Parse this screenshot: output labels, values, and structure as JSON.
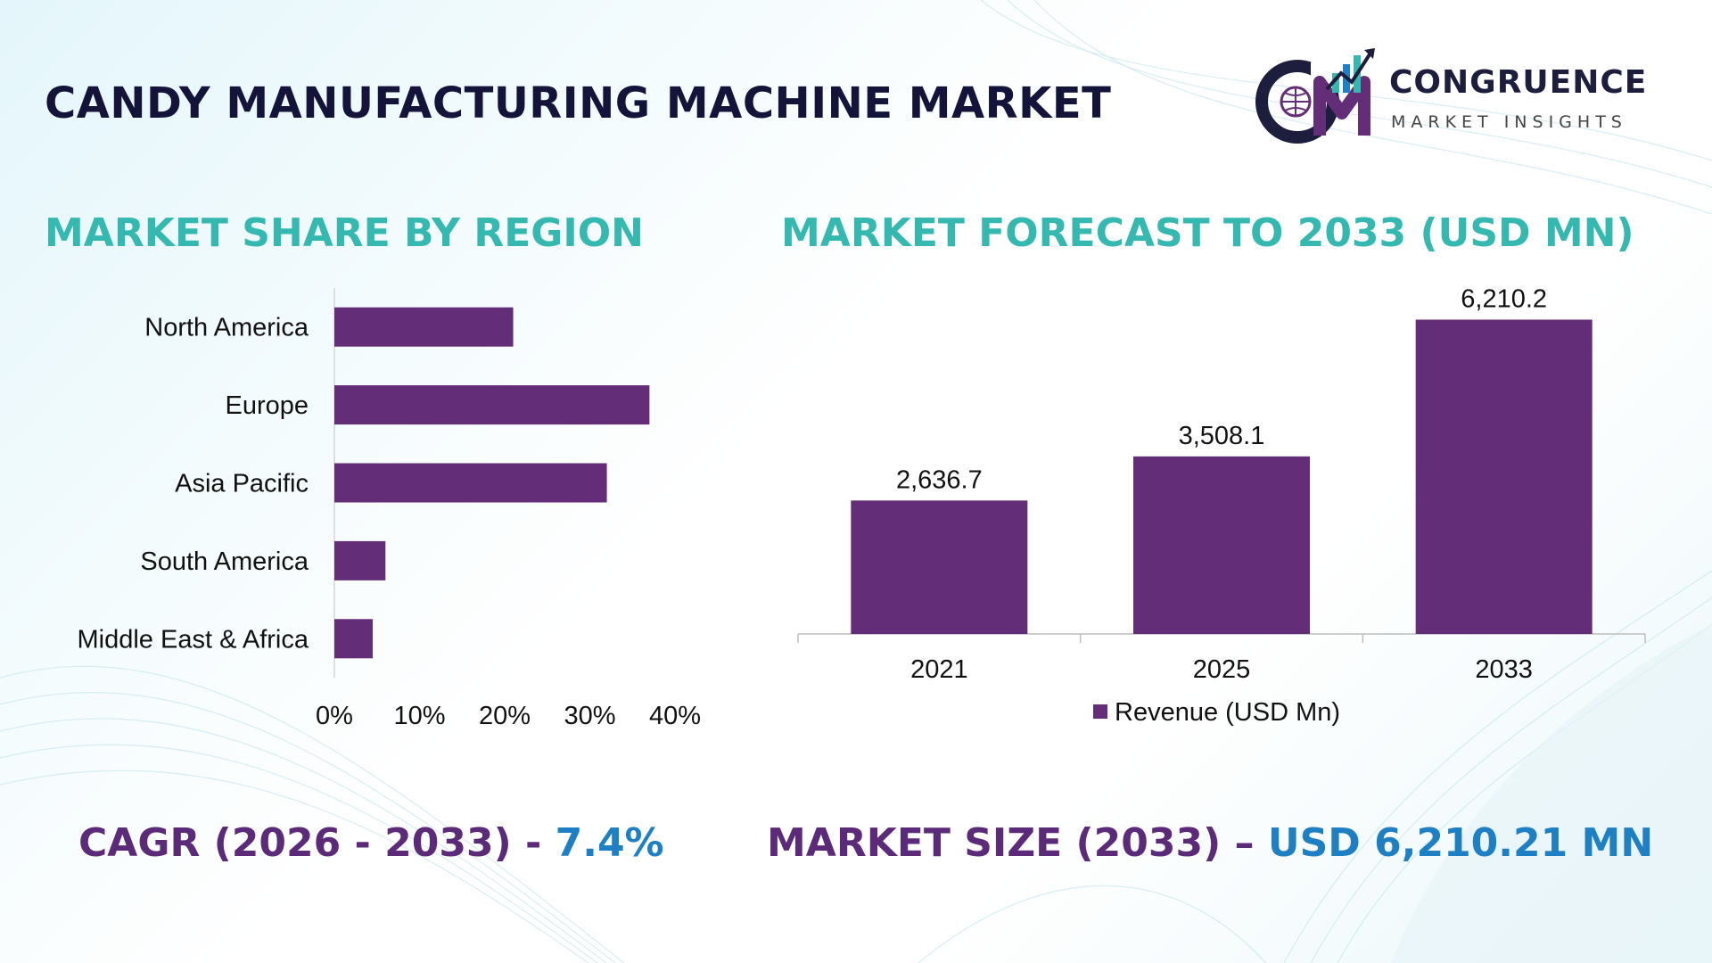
{
  "header": {
    "title": "CANDY MANUFACTURING MACHINE MARKET",
    "logo_name": "CONGRUENCE",
    "logo_tagline": "MARKET INSIGHTS"
  },
  "colors": {
    "bar": "#632d77",
    "accent_teal": "#35b8b0",
    "accent_blue": "#1e7fc3",
    "title": "#14143a"
  },
  "chart_data": [
    {
      "type": "bar",
      "orientation": "horizontal",
      "title": "MARKET SHARE BY REGION",
      "categories": [
        "North America",
        "Europe",
        "Asia Pacific",
        "South America",
        "Middle East & Africa"
      ],
      "values": [
        21,
        37,
        32,
        6,
        4.5
      ],
      "xlim": [
        0,
        40
      ],
      "ticks": [
        "0%",
        "10%",
        "20%",
        "30%",
        "40%"
      ],
      "grid": false
    },
    {
      "type": "bar",
      "title": "MARKET FORECAST TO 2033 (USD MN)",
      "categories": [
        "2021",
        "2025",
        "2033"
      ],
      "series": [
        {
          "name": "Revenue (USD Mn)",
          "values": [
            2636.7,
            3508.1,
            6210.2
          ]
        }
      ],
      "data_labels": [
        "2,636.7",
        "3,508.1",
        "6,210.2"
      ],
      "ylim": [
        0,
        6800
      ],
      "legend": "bottom",
      "grid": false
    }
  ],
  "footer": {
    "cagr_label": "CAGR (2026 - 2033) - ",
    "cagr_value": "7.4%",
    "size_label": "MARKET SIZE (2033) – ",
    "size_value": "USD 6,210.21 MN"
  }
}
